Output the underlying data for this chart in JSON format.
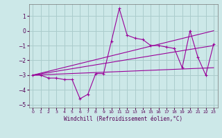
{
  "title": "",
  "xlabel": "Windchill (Refroidissement éolien,°C)",
  "ylabel": "",
  "bg_color": "#cce8e8",
  "grid_color": "#aacccc",
  "line_color": "#990099",
  "xlim": [
    -0.5,
    23.5
  ],
  "ylim": [
    -5.2,
    1.8
  ],
  "yticks": [
    -5,
    -4,
    -3,
    -2,
    -1,
    0,
    1
  ],
  "xticks": [
    0,
    1,
    2,
    3,
    4,
    5,
    6,
    7,
    8,
    9,
    10,
    11,
    12,
    13,
    14,
    15,
    16,
    17,
    18,
    19,
    20,
    21,
    22,
    23
  ],
  "series": {
    "line1_x": [
      0,
      1,
      2,
      3,
      4,
      5,
      6,
      7,
      8,
      9,
      10,
      11,
      12,
      13,
      14,
      15,
      16,
      17,
      18,
      19,
      20,
      21,
      22,
      23
    ],
    "line1_y": [
      -3.0,
      -3.0,
      -3.2,
      -3.2,
      -3.3,
      -3.3,
      -4.6,
      -4.3,
      -2.9,
      -2.9,
      -0.7,
      1.5,
      -0.3,
      -0.5,
      -0.6,
      -1.0,
      -1.0,
      -1.1,
      -1.2,
      -2.5,
      0.0,
      -1.8,
      -3.0,
      -0.9
    ],
    "line2_x": [
      0,
      23
    ],
    "line2_y": [
      -3.0,
      -1.0
    ],
    "line3_x": [
      0,
      23
    ],
    "line3_y": [
      -3.0,
      0.0
    ],
    "line4_x": [
      0,
      23
    ],
    "line4_y": [
      -3.0,
      -2.5
    ]
  }
}
